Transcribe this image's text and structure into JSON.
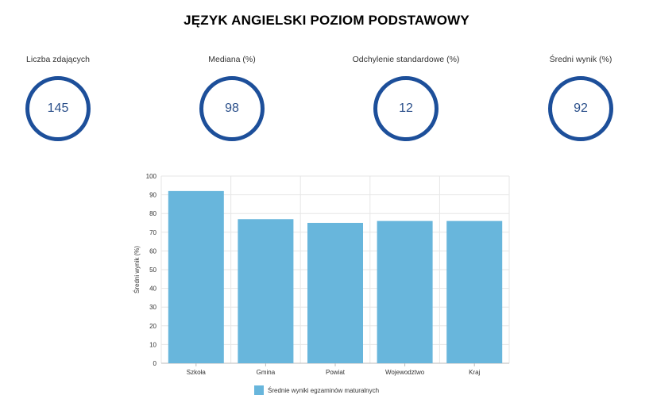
{
  "page": {
    "title": "JĘZYK ANGIELSKI POZIOM PODSTAWOWY"
  },
  "stats": [
    {
      "label": "Liczba zdających",
      "value": "145"
    },
    {
      "label": "Mediana (%)",
      "value": "98"
    },
    {
      "label": "Odchylenie standardowe (%)",
      "value": "12"
    },
    {
      "label": "Średni wynik (%)",
      "value": "92"
    }
  ],
  "colors": {
    "accent": "#1d4f9a",
    "bar": "#68b6dc",
    "grid": "#e6e6e6"
  },
  "chart_data": {
    "type": "bar",
    "categories": [
      "Szkoła",
      "Gmina",
      "Powiat",
      "Wojewodztwo",
      "Kraj"
    ],
    "series": [
      {
        "name": "Średnie wyniki egzaminów maturalnych",
        "values": [
          92,
          77,
          75,
          76,
          76
        ]
      }
    ],
    "title": "",
    "xlabel": "",
    "ylabel": "Średni wynik (%)",
    "ylim": [
      0,
      100
    ],
    "yticks": [
      0,
      10,
      20,
      30,
      40,
      50,
      60,
      70,
      80,
      90,
      100
    ],
    "grid": true,
    "legend": "bottom-center"
  }
}
